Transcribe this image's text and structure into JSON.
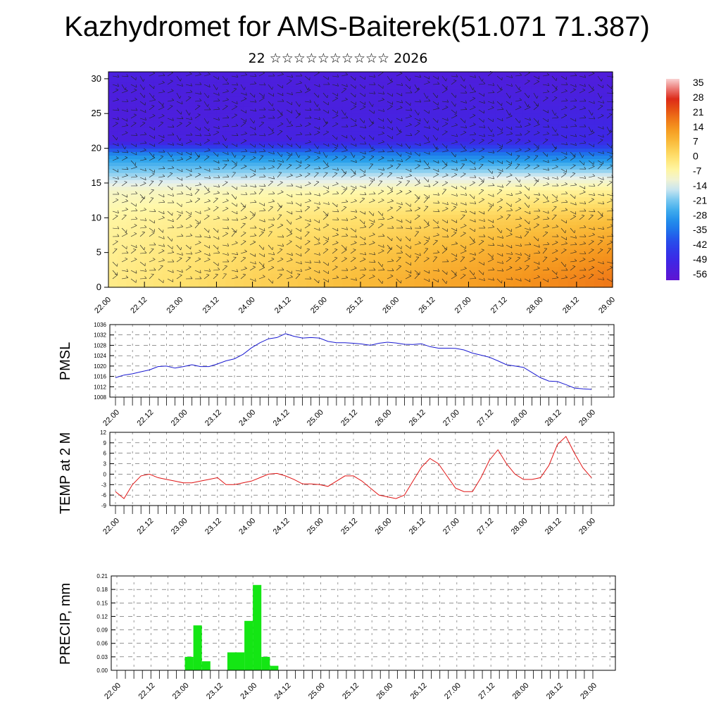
{
  "header": {
    "title": "Kazhydromet for AMS-Baiterek(51.071 71.387)",
    "subtitle": "22 ☆☆☆☆☆☆☆☆☆☆ 2026"
  },
  "chart_data": [
    {
      "type": "heatmap",
      "title": "",
      "xlabel": "",
      "ylabel": "",
      "x_ticks": [
        "22.00",
        "22.12",
        "23.00",
        "23.12",
        "24.00",
        "24.12",
        "25.00",
        "25.12",
        "26.00",
        "26.12",
        "27.00",
        "27.12",
        "28.00",
        "28.12",
        "29.00"
      ],
      "y_ticks": [
        0,
        5,
        10,
        15,
        20,
        25,
        30
      ],
      "ylim": [
        0,
        31
      ],
      "colorbar_labels": [
        35,
        28,
        21,
        14,
        7,
        0,
        -7,
        -14,
        -21,
        -28,
        -35,
        -42,
        -49,
        -56
      ],
      "colorbar_range": [
        -60,
        38
      ],
      "bands": [
        {
          "y_top": 31,
          "t_day1": -54,
          "t_day7": -56
        },
        {
          "y_top": 25,
          "t_day1": -55,
          "t_day7": -52
        },
        {
          "y_top": 21,
          "t_day1": -54,
          "t_day7": -50
        },
        {
          "y_top": 19,
          "t_day1": -30,
          "t_day7": -34
        },
        {
          "y_top": 16,
          "t_day1": -18,
          "t_day7": -14
        },
        {
          "y_top": 14,
          "t_day1": -10,
          "t_day7": -5
        },
        {
          "y_top": 10,
          "t_day1": -6,
          "t_day7": 6
        },
        {
          "y_top": 5,
          "t_day1": -4,
          "t_day7": 14
        },
        {
          "y_top": 1,
          "t_day1": -3,
          "t_day7": 18
        }
      ],
      "colors": {
        "cold": "#5a14dc",
        "mid": "#42a6e8",
        "neutral": "#fff3a8",
        "warm": "#f6a21e",
        "hot": "#e23a14"
      }
    },
    {
      "type": "line",
      "ylabel": "PMSL",
      "ylim": [
        1008,
        1036
      ],
      "y_ticks": [
        1008,
        1012,
        1016,
        1020,
        1024,
        1028,
        1032,
        1036
      ],
      "x_ticks": [
        "22.00",
        "22.12",
        "23.00",
        "23.12",
        "24.00",
        "24.12",
        "25.00",
        "25.12",
        "26.00",
        "26.12",
        "27.00",
        "27.12",
        "28.00",
        "28.12",
        "29.00"
      ],
      "x_hours": [
        0,
        3,
        6,
        9,
        12,
        15,
        18,
        21,
        24,
        27,
        30,
        33,
        36,
        39,
        42,
        45,
        48,
        51,
        54,
        57,
        60,
        63,
        66,
        69,
        72,
        75,
        78,
        81,
        84,
        87,
        90,
        93,
        96,
        99,
        102,
        105,
        108,
        111,
        114,
        117,
        120,
        123,
        126,
        129,
        132,
        135,
        138,
        141,
        144,
        147,
        150,
        153,
        156,
        159,
        162,
        165,
        168
      ],
      "series": [
        {
          "color": "#1a1ad2",
          "values": [
            1015.5,
            1016.5,
            1017,
            1017.8,
            1018.5,
            1019.8,
            1020,
            1019.2,
            1019.8,
            1020.5,
            1019.8,
            1019.8,
            1020.8,
            1022,
            1022.8,
            1024.5,
            1027,
            1029,
            1030.5,
            1031,
            1032.5,
            1031.5,
            1030.8,
            1031,
            1030.8,
            1029.5,
            1029,
            1029,
            1028.8,
            1028.5,
            1028,
            1028.8,
            1029.2,
            1028.9,
            1028.4,
            1028.3,
            1028.6,
            1027.5,
            1026.9,
            1026.9,
            1026.8,
            1026.2,
            1025,
            1024.2,
            1023.4,
            1022,
            1020.5,
            1020,
            1019.5,
            1017.5,
            1015.5,
            1014.2,
            1014,
            1012.8,
            1011.5,
            1011.2,
            1011
          ]
        }
      ]
    },
    {
      "type": "line",
      "ylabel": "TEMP at 2 M",
      "ylim": [
        -9,
        12
      ],
      "y_ticks": [
        -9,
        -6,
        -3,
        0,
        3,
        6,
        9,
        12
      ],
      "x_ticks": [
        "22.00",
        "22.12",
        "23.00",
        "23.12",
        "24.00",
        "24.12",
        "25.00",
        "25.12",
        "26.00",
        "26.12",
        "27.00",
        "27.12",
        "28.00",
        "28.12",
        "29.00"
      ],
      "x_hours": [
        0,
        3,
        6,
        9,
        12,
        15,
        18,
        21,
        24,
        27,
        30,
        33,
        36,
        39,
        42,
        45,
        48,
        51,
        54,
        57,
        60,
        63,
        66,
        69,
        72,
        75,
        78,
        81,
        84,
        87,
        90,
        93,
        96,
        99,
        102,
        105,
        108,
        111,
        114,
        117,
        120,
        123,
        126,
        129,
        132,
        135,
        138,
        141,
        144,
        147,
        150,
        153,
        156,
        159,
        162,
        165,
        168
      ],
      "series": [
        {
          "color": "#e01414",
          "values": [
            -5,
            -7,
            -3,
            -0.5,
            0,
            -1,
            -1.5,
            -2,
            -2.5,
            -2.5,
            -2,
            -1.5,
            -1,
            -3,
            -3,
            -2.5,
            -2,
            -1,
            0,
            0.2,
            -0.5,
            -1.5,
            -2.8,
            -2.8,
            -3,
            -3.5,
            -2,
            -0.5,
            -0.5,
            -2,
            -4,
            -6,
            -6.5,
            -7,
            -6,
            -2,
            2,
            4.5,
            3,
            -0.5,
            -4,
            -5,
            -5,
            -1,
            4,
            7,
            3,
            0,
            -1.5,
            -1.5,
            -1,
            2.5,
            8.5,
            10.8,
            6,
            1.8,
            -1
          ]
        }
      ]
    },
    {
      "type": "bar",
      "ylabel": "PRECIP, mm",
      "ylim": [
        0,
        0.21
      ],
      "y_ticks": [
        "0.00",
        "0.03",
        "0.06",
        "0.09",
        "0.12",
        "0.15",
        "0.18",
        "0.21"
      ],
      "x_ticks": [
        "22.00",
        "22.12",
        "23.00",
        "23.12",
        "24.00",
        "24.12",
        "25.00",
        "25.12",
        "26.00",
        "26.12",
        "27.00",
        "27.12",
        "28.00",
        "28.12",
        "29.00"
      ],
      "bar_hours_start": [
        24,
        27,
        30,
        39,
        42,
        45,
        48,
        51,
        54
      ],
      "values": [
        0.03,
        0.1,
        0.02,
        0.04,
        0.04,
        0.11,
        0.19,
        0.03,
        0.01
      ],
      "bar_width_hours": 3,
      "color": "#14e614"
    }
  ]
}
